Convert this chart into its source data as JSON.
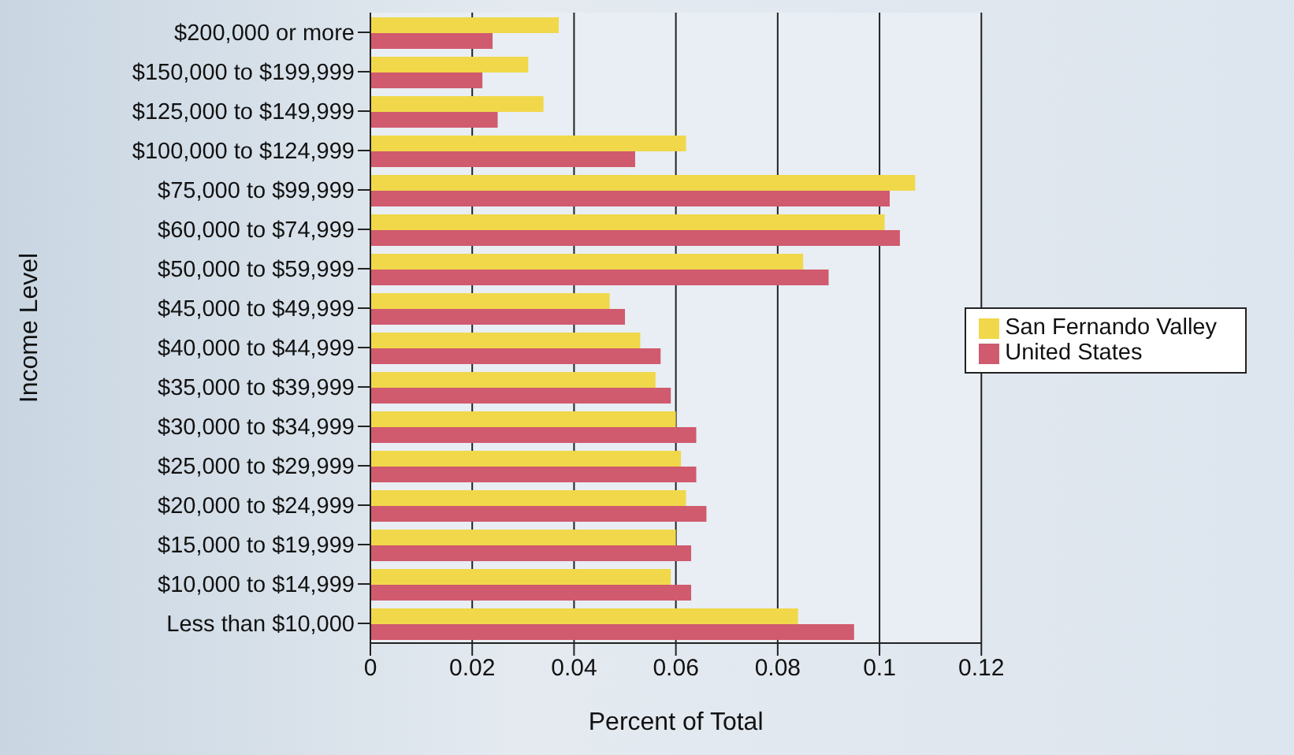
{
  "chart_data": {
    "type": "bar",
    "orientation": "horizontal",
    "xlabel": "Percent of Total",
    "ylabel": "Income Level",
    "categories": [
      "$200,000 or more",
      "$150,000 to $199,999",
      "$125,000 to $149,999",
      "$100,000 to $124,999",
      "$75,000 to $99,999",
      "$60,000 to $74,999",
      "$50,000 to $59,999",
      "$45,000 to $49,999",
      "$40,000 to $44,999",
      "$35,000 to $39,999",
      "$30,000 to $34,999",
      "$25,000 to $29,999",
      "$20,000 to $24,999",
      "$15,000 to $19,999",
      "$10,000 to $14,999",
      "Less than $10,000"
    ],
    "series": [
      {
        "name": "San Fernando Valley",
        "color": "#f0d84a",
        "values": [
          0.037,
          0.031,
          0.034,
          0.062,
          0.107,
          0.101,
          0.085,
          0.047,
          0.053,
          0.056,
          0.06,
          0.061,
          0.062,
          0.06,
          0.059,
          0.084
        ]
      },
      {
        "name": "United States",
        "color": "#d05a6e",
        "values": [
          0.024,
          0.022,
          0.025,
          0.052,
          0.102,
          0.104,
          0.09,
          0.05,
          0.057,
          0.059,
          0.064,
          0.064,
          0.066,
          0.063,
          0.063,
          0.095
        ]
      }
    ],
    "xlim": [
      0,
      0.12
    ],
    "xticks": [
      0,
      0.02,
      0.04,
      0.06,
      0.08,
      0.1,
      0.12
    ],
    "grid": "x",
    "legend": "right"
  }
}
